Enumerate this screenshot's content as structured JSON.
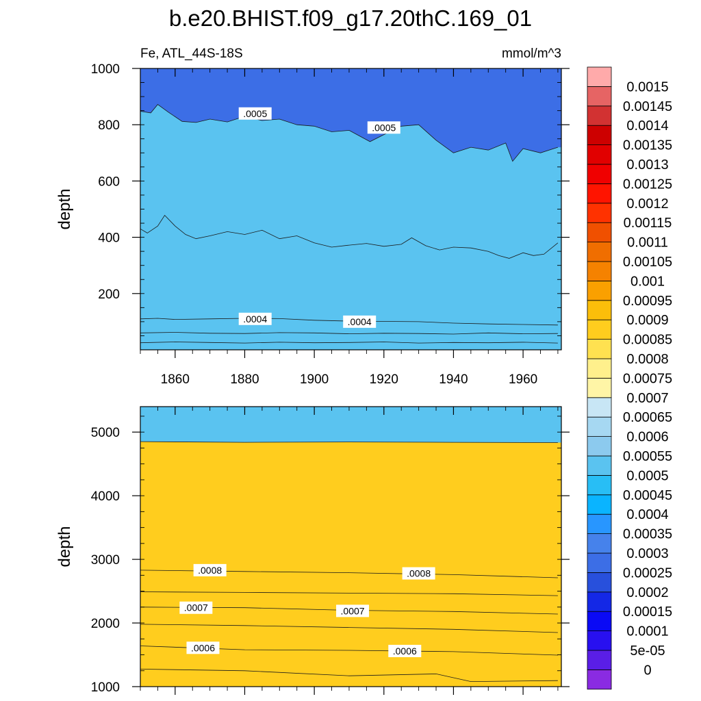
{
  "title": "b.e20.BHIST.f09_g17.20thC.169_01",
  "subtitle_left": "Fe, ATL_44S-18S",
  "subtitle_right": "mmol/m^3",
  "chart_data": [
    {
      "type": "heatmap",
      "panel": "upper",
      "xlabel": "",
      "ylabel": "depth",
      "xlim": [
        1850,
        1971
      ],
      "ylim": [
        1000,
        0
      ],
      "x_ticks": [
        "1860",
        "1880",
        "1900",
        "1920",
        "1940",
        "1960"
      ],
      "y_ticks": [
        "200",
        "400",
        "600",
        "800",
        "1000"
      ],
      "contours": [
        {
          "level": 0.0003,
          "x": [
            1850,
            1860,
            1870,
            1880,
            1890,
            1900,
            1910,
            1920,
            1930,
            1940,
            1950,
            1960,
            1970
          ],
          "y": [
            25,
            28,
            26,
            24,
            27,
            25,
            26,
            28,
            24,
            26,
            25,
            27,
            24
          ]
        },
        {
          "level": 0.00035,
          "x": [
            1850,
            1860,
            1870,
            1880,
            1890,
            1900,
            1910,
            1920,
            1930,
            1940,
            1950,
            1960,
            1970
          ],
          "y": [
            60,
            62,
            59,
            58,
            61,
            60,
            57,
            59,
            58,
            56,
            60,
            57,
            58
          ]
        },
        {
          "level": 0.0004,
          "x": [
            1850,
            1855,
            1860,
            1870,
            1880,
            1890,
            1900,
            1910,
            1920,
            1930,
            1940,
            1950,
            1960,
            1970
          ],
          "y": [
            110,
            112,
            108,
            110,
            112,
            111,
            105,
            102,
            101,
            100,
            95,
            92,
            90,
            88
          ]
        },
        {
          "level": 0.00045,
          "x": [
            1850,
            1852,
            1855,
            1857,
            1860,
            1863,
            1866,
            1870,
            1875,
            1880,
            1885,
            1890,
            1895,
            1900,
            1905,
            1910,
            1915,
            1920,
            1925,
            1928,
            1932,
            1936,
            1940,
            1945,
            1950,
            1953,
            1956,
            1960,
            1963,
            1966,
            1970
          ],
          "y": [
            430,
            415,
            440,
            478,
            440,
            410,
            395,
            405,
            420,
            410,
            425,
            395,
            405,
            380,
            365,
            372,
            378,
            368,
            375,
            398,
            370,
            355,
            365,
            362,
            350,
            335,
            325,
            345,
            335,
            340,
            380
          ]
        },
        {
          "level": 0.0005,
          "x": [
            1850,
            1853,
            1855,
            1858,
            1862,
            1866,
            1870,
            1875,
            1880,
            1885,
            1890,
            1895,
            1900,
            1905,
            1910,
            1913,
            1916,
            1920,
            1925,
            1930,
            1935,
            1940,
            1945,
            1950,
            1955,
            1957,
            1960,
            1965,
            1970
          ],
          "y": [
            848,
            842,
            872,
            845,
            812,
            808,
            820,
            810,
            830,
            815,
            820,
            800,
            795,
            775,
            780,
            760,
            740,
            765,
            795,
            800,
            745,
            700,
            720,
            710,
            735,
            670,
            715,
            700,
            720
          ]
        }
      ],
      "labels": [
        {
          "text": ".0004",
          "x": 1883,
          "y": 110
        },
        {
          "text": ".0004",
          "x": 1913,
          "y": 100
        },
        {
          "text": ".0005",
          "x": 1883,
          "y": 840
        },
        {
          "text": ".0005",
          "x": 1920,
          "y": 790
        }
      ]
    },
    {
      "type": "heatmap",
      "panel": "lower",
      "xlabel": "",
      "ylabel": "depth",
      "xlim": [
        1850,
        1971
      ],
      "ylim": [
        5400,
        1000
      ],
      "x_ticks": [],
      "y_ticks": [
        "1000",
        "2000",
        "3000",
        "4000",
        "5000"
      ],
      "contours": [
        {
          "level": 0.00055,
          "x": [
            1850,
            1880,
            1910,
            1935,
            1945,
            1970
          ],
          "y": [
            1275,
            1250,
            1170,
            1200,
            1080,
            1095
          ]
        },
        {
          "level": 0.0006,
          "x": [
            1850,
            1880,
            1910,
            1940,
            1970
          ],
          "y": [
            1640,
            1580,
            1570,
            1550,
            1495
          ]
        },
        {
          "level": 0.00065,
          "x": [
            1850,
            1880,
            1910,
            1940,
            1970
          ],
          "y": [
            1980,
            1960,
            1930,
            1900,
            1850
          ]
        },
        {
          "level": 0.0007,
          "x": [
            1850,
            1880,
            1910,
            1940,
            1970
          ],
          "y": [
            2250,
            2240,
            2200,
            2180,
            2140
          ]
        },
        {
          "level": 0.00075,
          "x": [
            1850,
            1880,
            1910,
            1940,
            1970
          ],
          "y": [
            2490,
            2480,
            2470,
            2460,
            2430
          ]
        },
        {
          "level": 0.0008,
          "x": [
            1850,
            1880,
            1910,
            1940,
            1970
          ],
          "y": [
            2830,
            2810,
            2790,
            2760,
            2710
          ]
        },
        {
          "level": 0.00085,
          "x": [
            1850,
            1880,
            1910,
            1940,
            1970
          ],
          "y": [
            4850,
            4840,
            4845,
            4840,
            4835
          ]
        }
      ],
      "labels": [
        {
          "text": ".0006",
          "x": 1868,
          "y": 1610
        },
        {
          "text": ".0006",
          "x": 1926,
          "y": 1560
        },
        {
          "text": ".0007",
          "x": 1866,
          "y": 2240
        },
        {
          "text": ".0007",
          "x": 1911,
          "y": 2190
        },
        {
          "text": ".0008",
          "x": 1870,
          "y": 2830
        },
        {
          "text": ".0008",
          "x": 1930,
          "y": 2780
        }
      ]
    }
  ],
  "legend": {
    "levels": [
      "0",
      "5e-05",
      "0.0001",
      "0.00015",
      "0.0002",
      "0.00025",
      "0.0003",
      "0.00035",
      "0.0004",
      "0.00045",
      "0.0005",
      "0.00055",
      "0.0006",
      "0.00065",
      "0.0007",
      "0.00075",
      "0.0008",
      "0.00085",
      "0.0009",
      "0.00095",
      "0.001",
      "0.00105",
      "0.0011",
      "0.00115",
      "0.0012",
      "0.00125",
      "0.0013",
      "0.00135",
      "0.0014",
      "0.00145",
      "0.0015"
    ],
    "colors": [
      "#8a2be2",
      "#5a1ee6",
      "#2810f0",
      "#0a0af5",
      "#1428e6",
      "#2850dc",
      "#3c6ee6",
      "#4682eb",
      "#2896ff",
      "#0ab4ff",
      "#28bef5",
      "#5ac3f0",
      "#8ccaee",
      "#a6d8f2",
      "#c8e6f5",
      "#fff5a6",
      "#fff08c",
      "#ffe150",
      "#ffcd1e",
      "#fbbe0a",
      "#faa000",
      "#f58200",
      "#f06e00",
      "#f05000",
      "#ff3200",
      "#ff1400",
      "#f00000",
      "#e10000",
      "#cd0000",
      "#d23232",
      "#e66464",
      "#ffaaaa"
    ]
  }
}
